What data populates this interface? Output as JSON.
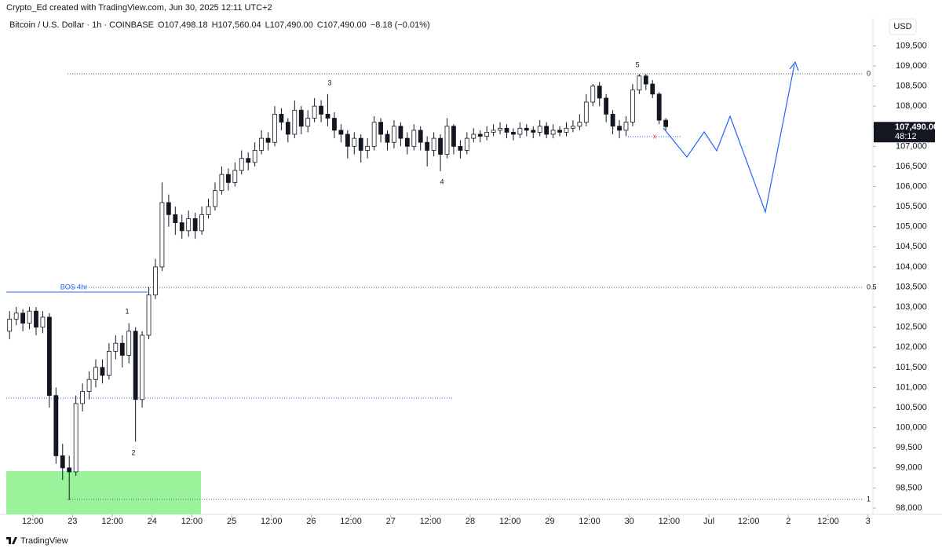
{
  "chart_data": {
    "type": "candlestick",
    "credit": "Crypto_Ed created with TradingView.com, Jun 30, 2025 12:11 UTC+2",
    "symbol": "Bitcoin / U.S. Dollar · 1h · COINBASE",
    "ohlc_text": [
      "O107,498.18",
      "H107,560.04",
      "L107,490.00",
      "C107,490.00",
      "−8.18 (−0.01%)"
    ],
    "currency": "USD",
    "price_tag": "107,490.00",
    "countdown": "48:12",
    "brand": "TradingView",
    "bos_label": "BOS 4hr",
    "fib_labels": [
      "0",
      "0.5",
      "1"
    ],
    "wave_labels": [
      "1",
      "2",
      "3",
      "4",
      "5"
    ],
    "x_marker": "x",
    "up_color": "#ffffff",
    "down_color": "#131722",
    "grid": false,
    "xlim": [
      "Jun 22 04:00",
      "Jul 3 01:30"
    ],
    "xticks": [
      {
        "value": "Jun 22 12:00",
        "label": "12:00"
      },
      {
        "value": "Jun 23 00:00",
        "label": "23"
      },
      {
        "value": "Jun 23 12:00",
        "label": "12:00"
      },
      {
        "value": "Jun 24 00:00",
        "label": "24"
      },
      {
        "value": "Jun 24 12:00",
        "label": "12:00"
      },
      {
        "value": "Jun 25 00:00",
        "label": "25"
      },
      {
        "value": "Jun 25 12:00",
        "label": "12:00"
      },
      {
        "value": "Jun 26 00:00",
        "label": "26"
      },
      {
        "value": "Jun 26 12:00",
        "label": "12:00"
      },
      {
        "value": "Jun 27 00:00",
        "label": "27"
      },
      {
        "value": "Jun 27 12:00",
        "label": "12:00"
      },
      {
        "value": "Jun 28 00:00",
        "label": "28"
      },
      {
        "value": "Jun 28 12:00",
        "label": "12:00"
      },
      {
        "value": "Jun 29 00:00",
        "label": "29"
      },
      {
        "value": "Jun 29 12:00",
        "label": "12:00"
      },
      {
        "value": "Jun 30 00:00",
        "label": "30"
      },
      {
        "value": "Jun 30 12:00",
        "label": "12:00"
      },
      {
        "value": "Jul 1 00:00",
        "label": "Jul"
      },
      {
        "value": "Jul 1 12:00",
        "label": "12:00"
      },
      {
        "value": "Jul 2 00:00",
        "label": "2"
      },
      {
        "value": "Jul 2 12:00",
        "label": "12:00"
      },
      {
        "value": "Jul 3 00:00",
        "label": "3"
      }
    ],
    "ylim": [
      97844,
      110211
    ],
    "yticks": [
      {
        "value": 98000,
        "label": "98,000"
      },
      {
        "value": 98500,
        "label": "98,500"
      },
      {
        "value": 99000,
        "label": "99,000"
      },
      {
        "value": 99500,
        "label": "99,500"
      },
      {
        "value": 100000,
        "label": "100,000"
      },
      {
        "value": 100500,
        "label": "100,500"
      },
      {
        "value": 101000,
        "label": "101,000"
      },
      {
        "value": 101500,
        "label": "101,500"
      },
      {
        "value": 102000,
        "label": "102,000"
      },
      {
        "value": 102500,
        "label": "102,500"
      },
      {
        "value": 103000,
        "label": "103,000"
      },
      {
        "value": 103500,
        "label": "103,500"
      },
      {
        "value": 104000,
        "label": "104,000"
      },
      {
        "value": 104500,
        "label": "104,500"
      },
      {
        "value": 105000,
        "label": "105,000"
      },
      {
        "value": 105500,
        "label": "105,500"
      },
      {
        "value": 106000,
        "label": "106,000"
      },
      {
        "value": 106500,
        "label": "106,500"
      },
      {
        "value": 107000,
        "label": "107,000"
      },
      {
        "value": 107500,
        "label": "107,500"
      },
      {
        "value": 108000,
        "label": "108,000"
      },
      {
        "value": 108500,
        "label": "108,500"
      },
      {
        "value": 109000,
        "label": "109,000"
      },
      {
        "value": 109500,
        "label": "109,500"
      }
    ],
    "x": [
      "Jun 22 05:00",
      "Jun 22 07:00",
      "Jun 22 09:00",
      "Jun 22 11:00",
      "Jun 22 13:00",
      "Jun 22 15:00",
      "Jun 22 17:00",
      "Jun 22 19:00",
      "Jun 22 21:00",
      "Jun 22 23:00",
      "Jun 23 01:00",
      "Jun 23 03:00",
      "Jun 23 05:00",
      "Jun 23 07:00",
      "Jun 23 09:00",
      "Jun 23 11:00",
      "Jun 23 13:00",
      "Jun 23 15:00",
      "Jun 23 17:00",
      "Jun 23 19:00",
      "Jun 23 21:00",
      "Jun 23 23:00",
      "Jun 24 01:00",
      "Jun 24 03:00",
      "Jun 24 05:00",
      "Jun 24 07:00",
      "Jun 24 09:00",
      "Jun 24 11:00",
      "Jun 24 13:00",
      "Jun 24 15:00",
      "Jun 24 17:00",
      "Jun 24 19:00",
      "Jun 24 21:00",
      "Jun 24 23:00",
      "Jun 25 01:00",
      "Jun 25 03:00",
      "Jun 25 05:00",
      "Jun 25 07:00",
      "Jun 25 09:00",
      "Jun 25 11:00",
      "Jun 25 13:00",
      "Jun 25 15:00",
      "Jun 25 17:00",
      "Jun 25 19:00",
      "Jun 25 21:00",
      "Jun 25 23:00",
      "Jun 26 01:00",
      "Jun 26 03:00",
      "Jun 26 05:00",
      "Jun 26 07:00",
      "Jun 26 09:00",
      "Jun 26 11:00",
      "Jun 26 13:00",
      "Jun 26 15:00",
      "Jun 26 17:00",
      "Jun 26 19:00",
      "Jun 26 21:00",
      "Jun 26 23:00",
      "Jun 27 01:00",
      "Jun 27 03:00",
      "Jun 27 05:00",
      "Jun 27 07:00",
      "Jun 27 09:00",
      "Jun 27 11:00",
      "Jun 27 13:00",
      "Jun 27 15:00",
      "Jun 27 17:00",
      "Jun 27 19:00",
      "Jun 27 21:00",
      "Jun 27 23:00",
      "Jun 28 01:00",
      "Jun 28 03:00",
      "Jun 28 05:00",
      "Jun 28 07:00",
      "Jun 28 09:00",
      "Jun 28 11:00",
      "Jun 28 13:00",
      "Jun 28 15:00",
      "Jun 28 17:00",
      "Jun 28 19:00",
      "Jun 28 21:00",
      "Jun 28 23:00",
      "Jun 29 01:00",
      "Jun 29 03:00",
      "Jun 29 05:00",
      "Jun 29 07:00",
      "Jun 29 09:00",
      "Jun 29 11:00",
      "Jun 29 13:00",
      "Jun 29 15:00",
      "Jun 29 17:00",
      "Jun 29 19:00",
      "Jun 29 21:00",
      "Jun 29 23:00",
      "Jun 30 01:00",
      "Jun 30 03:00",
      "Jun 30 05:00",
      "Jun 30 07:00",
      "Jun 30 09:00",
      "Jun 30 11:00"
    ],
    "open": [
      102400,
      102700,
      102850,
      102600,
      102900,
      102500,
      102750,
      100800,
      99300,
      99000,
      98900,
      100600,
      100900,
      101200,
      101500,
      101300,
      101900,
      102100,
      101800,
      102400,
      100700,
      102300,
      103300,
      104000,
      105600,
      105300,
      105100,
      104900,
      105200,
      104900,
      105300,
      105500,
      105900,
      106300,
      106100,
      106400,
      106700,
      106600,
      106900,
      107200,
      107100,
      107800,
      107600,
      107300,
      107900,
      107500,
      107700,
      108000,
      107800,
      107700,
      107400,
      107300,
      107000,
      107200,
      106900,
      107000,
      107600,
      107300,
      107100,
      107500,
      107200,
      107000,
      107400,
      107100,
      106900,
      107200,
      106800,
      107500,
      107000,
      106900,
      107200,
      107300,
      107250,
      107350,
      107400,
      107450,
      107350,
      107300,
      107450,
      107400,
      107350,
      107500,
      107300,
      107400,
      107350,
      107450,
      107500,
      107600,
      108100,
      108500,
      108200,
      107800,
      107500,
      107400,
      107600,
      108400,
      108750,
      108550,
      108300,
      107650
    ],
    "high": [
      102900,
      103000,
      102950,
      103000,
      103000,
      102900,
      102850,
      101000,
      99600,
      99300,
      100800,
      101100,
      101400,
      101700,
      101700,
      102100,
      102300,
      102300,
      102600,
      102500,
      102400,
      103500,
      104200,
      106100,
      105800,
      105500,
      105300,
      105400,
      105350,
      105500,
      105700,
      106100,
      106500,
      106450,
      106600,
      106900,
      106850,
      107100,
      107400,
      107350,
      108000,
      107950,
      107700,
      108140,
      108000,
      107900,
      108200,
      108150,
      108300,
      107850,
      107550,
      107400,
      107350,
      107300,
      107200,
      107750,
      107700,
      107400,
      107650,
      107600,
      107350,
      107550,
      107500,
      107250,
      107350,
      107300,
      107700,
      107550,
      107150,
      107350,
      107450,
      107400,
      107500,
      107550,
      107600,
      107550,
      107450,
      107600,
      107550,
      107500,
      107650,
      107600,
      107550,
      107500,
      107600,
      107650,
      107800,
      108300,
      108550,
      108600,
      108300,
      107900,
      107650,
      107750,
      108550,
      108800,
      108800,
      108650,
      108350,
      107700
    ],
    "low": [
      102200,
      102550,
      102400,
      102450,
      102300,
      102350,
      100500,
      99100,
      98700,
      98200,
      98800,
      100400,
      100700,
      101000,
      101100,
      101200,
      101700,
      101500,
      101600,
      99650,
      100500,
      102200,
      103200,
      103900,
      105000,
      104800,
      104700,
      104750,
      104700,
      104800,
      105200,
      105400,
      105800,
      105900,
      106000,
      106300,
      106400,
      106500,
      106800,
      106900,
      107000,
      107400,
      107100,
      107200,
      107300,
      107350,
      107600,
      107600,
      107500,
      107200,
      107100,
      106700,
      106800,
      106600,
      106700,
      106900,
      107100,
      106900,
      106950,
      107000,
      106800,
      106900,
      106900,
      106500,
      106750,
      106380,
      106700,
      106800,
      106700,
      106800,
      107100,
      107100,
      107150,
      107250,
      107300,
      107200,
      107150,
      107200,
      107250,
      107200,
      107250,
      107200,
      107200,
      107250,
      107250,
      107350,
      107400,
      107500,
      108000,
      108000,
      107600,
      107300,
      107200,
      107250,
      107500,
      108300,
      108400,
      108200,
      107550,
      107400
    ],
    "close": [
      102700,
      102850,
      102600,
      102900,
      102500,
      102750,
      100800,
      99300,
      99000,
      98900,
      100600,
      100900,
      101200,
      101500,
      101300,
      101900,
      102100,
      101800,
      102400,
      100700,
      102300,
      103300,
      104000,
      105600,
      105300,
      105100,
      104900,
      105200,
      104900,
      105300,
      105500,
      105900,
      106300,
      106100,
      106400,
      106700,
      106600,
      106900,
      107200,
      107100,
      107800,
      107600,
      107300,
      107900,
      107500,
      107700,
      108000,
      107800,
      107700,
      107400,
      107300,
      107000,
      107200,
      106900,
      107000,
      107600,
      107300,
      107100,
      107500,
      107200,
      107000,
      107400,
      107100,
      106900,
      107200,
      106800,
      107500,
      107000,
      106900,
      107200,
      107300,
      107250,
      107350,
      107400,
      107450,
      107350,
      107300,
      107450,
      107400,
      107350,
      107500,
      107300,
      107400,
      107350,
      107450,
      107500,
      107600,
      108100,
      108500,
      108200,
      107800,
      107500,
      107400,
      107600,
      108400,
      108750,
      108550,
      108300,
      107650,
      107490
    ]
  }
}
